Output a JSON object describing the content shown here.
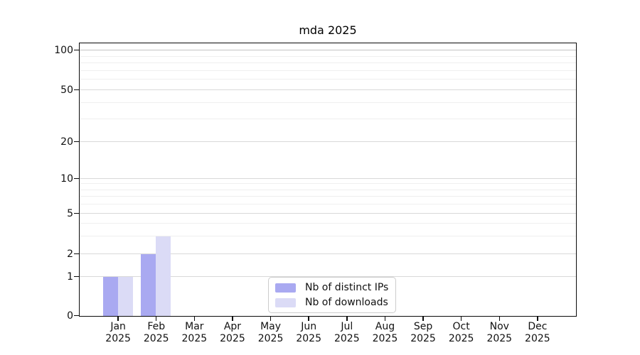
{
  "chart_data": {
    "type": "bar",
    "title": "mda 2025",
    "categories": [
      "Jan 2025",
      "Feb 2025",
      "Mar 2025",
      "Apr 2025",
      "May 2025",
      "Jun 2025",
      "Jul 2025",
      "Aug 2025",
      "Sep 2025",
      "Oct 2025",
      "Nov 2025",
      "Dec 2025"
    ],
    "series": [
      {
        "name": "Nb of distinct IPs",
        "color": "#a9a9f1",
        "values": [
          1,
          2,
          0,
          0,
          0,
          0,
          0,
          0,
          0,
          0,
          0,
          0
        ]
      },
      {
        "name": "Nb of downloads",
        "color": "#dbdbf6",
        "values": [
          1,
          3,
          0,
          0,
          0,
          0,
          0,
          0,
          0,
          0,
          0,
          0
        ]
      }
    ],
    "y_axis": {
      "scale": "symlog",
      "major_ticks": [
        0,
        1,
        2,
        5,
        10,
        20,
        50,
        100
      ],
      "minor_gridlines": [
        3,
        4,
        6,
        7,
        8,
        9,
        30,
        40,
        60,
        70,
        80,
        90
      ],
      "range": [
        0,
        110
      ]
    },
    "x_axis": {
      "tick_label_line2": "2025"
    },
    "legend": {
      "position": "lower-center-inside"
    },
    "grid": true,
    "colors": {
      "major_grid": "#d9d9d9",
      "minor_grid": "#efefef",
      "top_grid": "#c4c4c4",
      "axis": "#0a0a0a"
    }
  }
}
